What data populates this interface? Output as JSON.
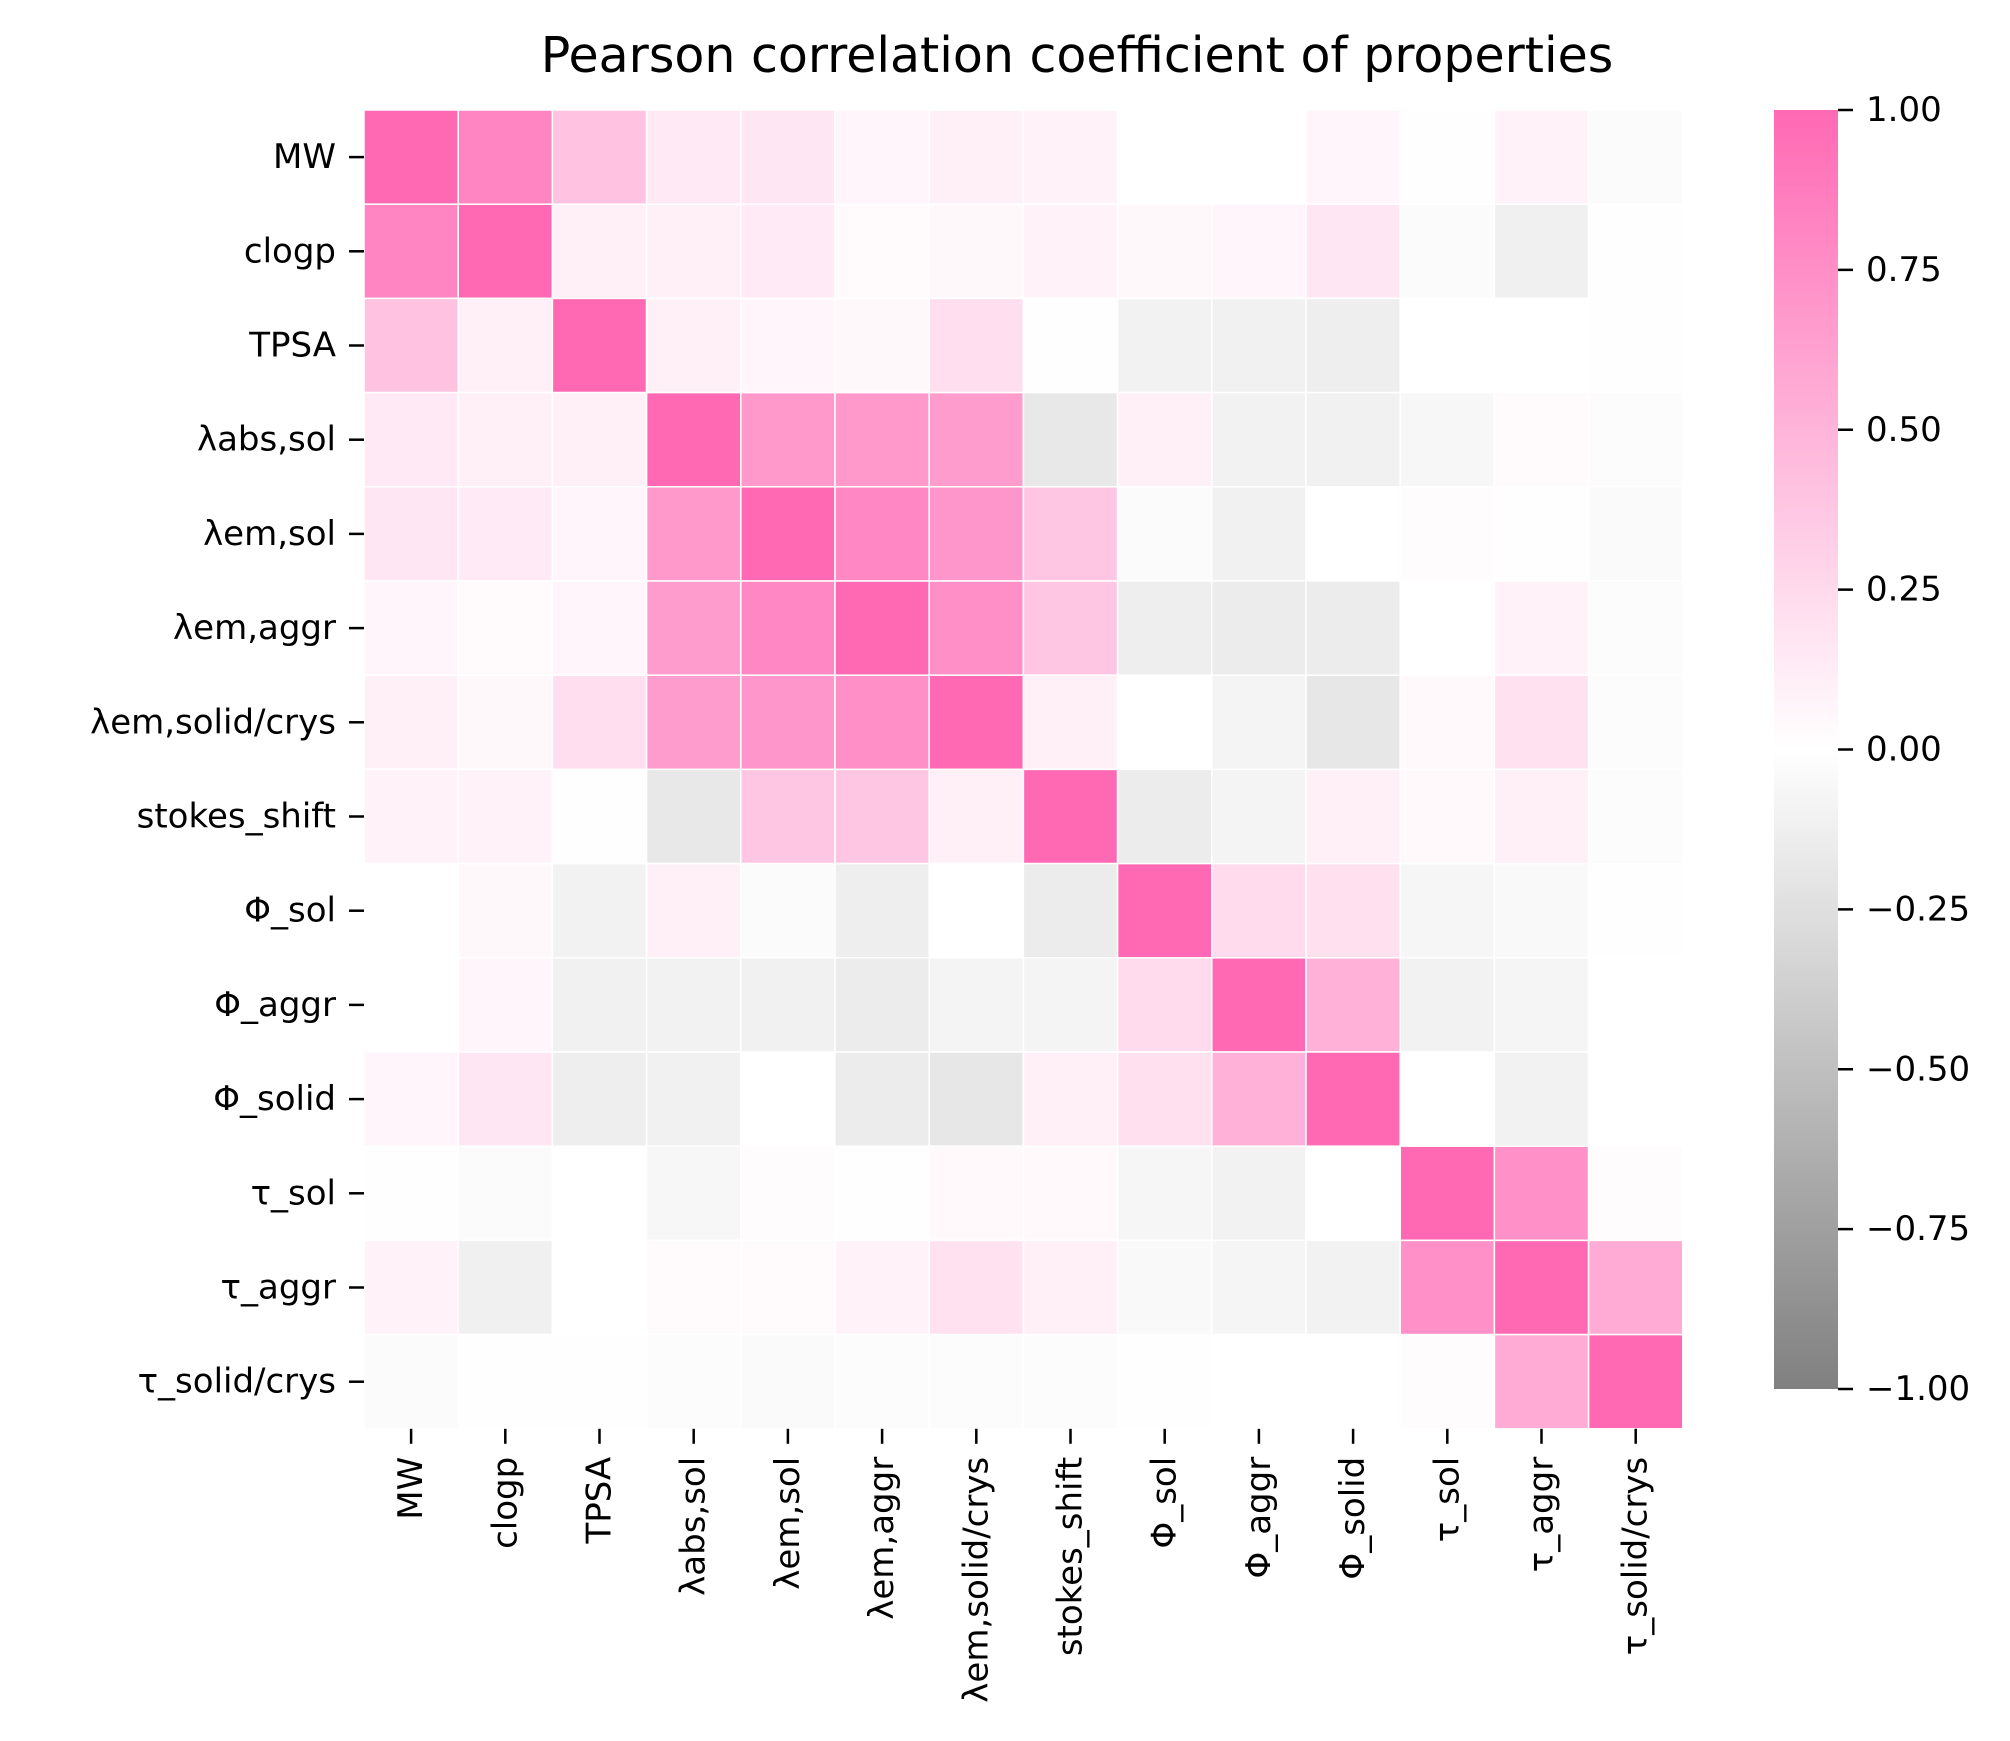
{
  "chart_data": {
    "type": "heatmap",
    "title": "Pearson correlation coefficient of properties",
    "xlabel": "",
    "ylabel": "",
    "labels": [
      "MW",
      "clogp",
      "TPSA",
      "λabs,sol",
      "λem,sol",
      "λem,aggr",
      "λem,solid/crys",
      "stokes_shift",
      "Φ_sol",
      "Φ_aggr",
      "Φ_solid",
      "τ_sol",
      "τ_aggr",
      "τ_solid/crys"
    ],
    "matrix": [
      [
        1.0,
        0.82,
        0.4,
        0.15,
        0.17,
        0.07,
        0.1,
        0.08,
        0.0,
        0.0,
        0.07,
        -0.01,
        0.08,
        -0.03
      ],
      [
        0.82,
        1.0,
        0.11,
        0.1,
        0.14,
        0.03,
        0.05,
        0.09,
        0.05,
        0.07,
        0.17,
        -0.03,
        -0.12,
        -0.01
      ],
      [
        0.4,
        0.11,
        1.0,
        0.1,
        0.07,
        0.05,
        0.22,
        -0.01,
        -0.1,
        -0.11,
        -0.13,
        0.0,
        0.0,
        -0.01
      ],
      [
        0.15,
        0.1,
        0.1,
        1.0,
        0.68,
        0.68,
        0.66,
        -0.18,
        0.1,
        -0.1,
        -0.11,
        -0.06,
        0.03,
        -0.02
      ],
      [
        0.17,
        0.14,
        0.07,
        0.68,
        1.0,
        0.8,
        0.7,
        0.38,
        -0.03,
        -0.11,
        0.0,
        0.02,
        -0.01,
        -0.04
      ],
      [
        0.07,
        0.03,
        0.07,
        0.66,
        0.8,
        1.0,
        0.75,
        0.38,
        -0.13,
        -0.15,
        -0.15,
        0.0,
        0.08,
        -0.02
      ],
      [
        0.1,
        0.05,
        0.22,
        0.66,
        0.7,
        0.75,
        1.0,
        0.1,
        0.0,
        -0.09,
        -0.19,
        0.04,
        0.2,
        -0.02
      ],
      [
        0.08,
        0.09,
        -0.01,
        -0.18,
        0.38,
        0.38,
        0.1,
        1.0,
        -0.15,
        -0.09,
        0.11,
        0.04,
        0.11,
        -0.02
      ],
      [
        0.0,
        0.05,
        -0.1,
        0.1,
        -0.03,
        -0.13,
        0.0,
        -0.15,
        1.0,
        0.24,
        0.21,
        -0.07,
        -0.05,
        -0.01
      ],
      [
        0.0,
        0.07,
        -0.11,
        -0.1,
        -0.11,
        -0.15,
        -0.09,
        -0.09,
        0.24,
        1.0,
        0.52,
        -0.1,
        -0.08,
        0.0
      ],
      [
        0.07,
        0.17,
        -0.13,
        -0.11,
        0.0,
        -0.15,
        -0.19,
        0.11,
        0.21,
        0.52,
        1.0,
        0.0,
        -0.1,
        0.0
      ],
      [
        -0.01,
        -0.03,
        0.0,
        -0.06,
        0.02,
        -0.01,
        0.04,
        0.04,
        -0.07,
        -0.1,
        0.0,
        1.0,
        0.74,
        0.02
      ],
      [
        0.08,
        -0.12,
        0.0,
        0.03,
        0.03,
        0.08,
        0.2,
        0.11,
        -0.05,
        -0.08,
        -0.1,
        0.74,
        1.0,
        0.56
      ],
      [
        -0.03,
        -0.01,
        -0.01,
        -0.02,
        -0.04,
        -0.02,
        -0.02,
        -0.02,
        -0.01,
        0.0,
        0.0,
        0.02,
        0.56,
        1.0
      ]
    ],
    "vmin": -1.0,
    "vmax": 1.0,
    "colormap": {
      "negative_color": "#808080",
      "zero_color": "#ffffff",
      "positive_color": "#ff69b4"
    },
    "colorbar": {
      "location": "right",
      "ticks": [
        "1.00",
        "0.75",
        "0.50",
        "0.25",
        "0.00",
        "−0.25",
        "−0.50",
        "−0.75",
        "−1.00"
      ],
      "tick_values": [
        1.0,
        0.75,
        0.5,
        0.25,
        0.0,
        -0.25,
        -0.5,
        -0.75,
        -1.0
      ]
    },
    "grid": true,
    "cell_separator_color": "#ffffff"
  }
}
